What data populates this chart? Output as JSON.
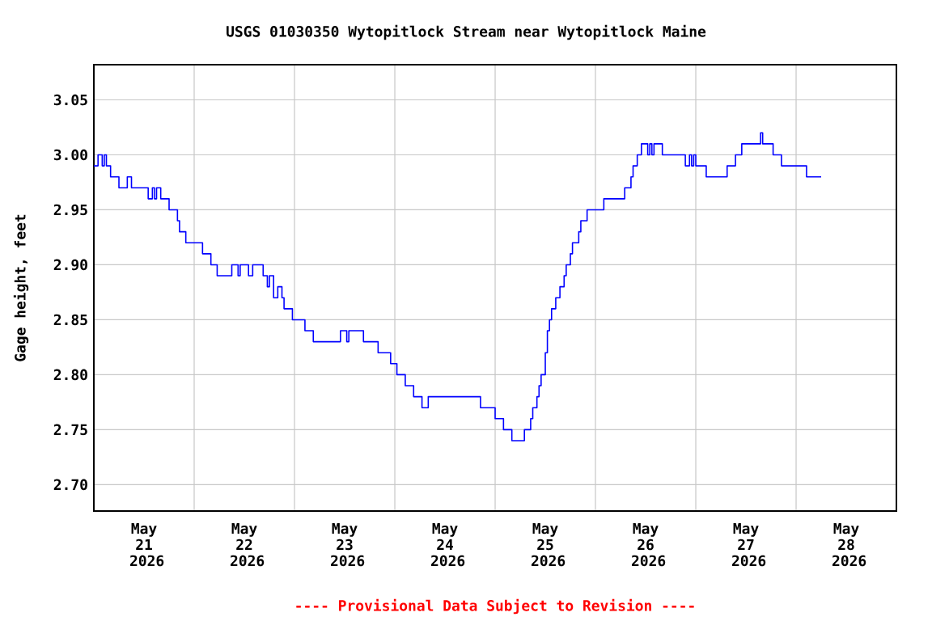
{
  "chart_data": {
    "type": "step",
    "title": "USGS 01030350 Wytopitlock Stream near Wytopitlock Maine",
    "ylabel": "Gage height, feet",
    "annotations": [
      "---- Provisional Data Subject to Revision ----"
    ],
    "x": [
      "2026-05-21T00:00",
      "2026-05-21T01:00",
      "2026-05-21T02:00",
      "2026-05-21T02:30",
      "2026-05-21T03:00",
      "2026-05-21T04:00",
      "2026-05-21T06:00",
      "2026-05-21T08:00",
      "2026-05-21T09:00",
      "2026-05-21T13:00",
      "2026-05-21T14:00",
      "2026-05-21T14:30",
      "2026-05-21T15:00",
      "2026-05-21T16:00",
      "2026-05-21T18:00",
      "2026-05-21T20:00",
      "2026-05-21T20:30",
      "2026-05-21T22:00",
      "2026-05-22T02:00",
      "2026-05-22T04:00",
      "2026-05-22T05:30",
      "2026-05-22T09:00",
      "2026-05-22T10:30",
      "2026-05-22T11:00",
      "2026-05-22T13:00",
      "2026-05-22T14:00",
      "2026-05-22T16:30",
      "2026-05-22T17:30",
      "2026-05-22T18:00",
      "2026-05-22T19:00",
      "2026-05-22T20:00",
      "2026-05-22T21:00",
      "2026-05-22T21:30",
      "2026-05-22T23:30",
      "2026-05-23T02:30",
      "2026-05-23T04:30",
      "2026-05-23T11:00",
      "2026-05-23T12:30",
      "2026-05-23T13:00",
      "2026-05-23T16:30",
      "2026-05-23T20:00",
      "2026-05-23T23:00",
      "2026-05-24T00:30",
      "2026-05-24T02:30",
      "2026-05-24T04:30",
      "2026-05-24T06:30",
      "2026-05-24T08:00",
      "2026-05-24T20:30",
      "2026-05-25T00:00",
      "2026-05-25T02:00",
      "2026-05-25T04:00",
      "2026-05-25T07:00",
      "2026-05-25T08:30",
      "2026-05-25T09:00",
      "2026-05-25T10:00",
      "2026-05-25T10:30",
      "2026-05-25T11:00",
      "2026-05-25T12:00",
      "2026-05-25T12:30",
      "2026-05-25T13:00",
      "2026-05-25T13:30",
      "2026-05-25T14:30",
      "2026-05-25T15:30",
      "2026-05-25T16:30",
      "2026-05-25T17:00",
      "2026-05-25T18:00",
      "2026-05-25T18:30",
      "2026-05-25T20:00",
      "2026-05-25T20:30",
      "2026-05-25T22:00",
      "2026-05-26T02:00",
      "2026-05-26T07:00",
      "2026-05-26T08:30",
      "2026-05-26T09:00",
      "2026-05-26T10:00",
      "2026-05-26T11:00",
      "2026-05-26T12:30",
      "2026-05-26T13:00",
      "2026-05-26T13:30",
      "2026-05-26T14:00",
      "2026-05-26T16:00",
      "2026-05-26T21:30",
      "2026-05-26T22:30",
      "2026-05-26T23:00",
      "2026-05-26T23:30",
      "2026-05-27T00:00",
      "2026-05-27T02:30",
      "2026-05-27T07:30",
      "2026-05-27T09:30",
      "2026-05-27T11:00",
      "2026-05-27T15:30",
      "2026-05-27T16:00",
      "2026-05-27T18:30",
      "2026-05-27T20:30",
      "2026-05-28T02:30",
      "2026-05-28T06:00"
    ],
    "series": [
      {
        "color": "#0000ff",
        "values": [
          2.99,
          3.0,
          2.99,
          3.0,
          2.99,
          2.98,
          2.97,
          2.98,
          2.97,
          2.96,
          2.97,
          2.96,
          2.97,
          2.96,
          2.95,
          2.94,
          2.93,
          2.92,
          2.91,
          2.9,
          2.89,
          2.9,
          2.89,
          2.9,
          2.89,
          2.9,
          2.89,
          2.88,
          2.89,
          2.87,
          2.88,
          2.87,
          2.86,
          2.85,
          2.84,
          2.83,
          2.84,
          2.83,
          2.84,
          2.83,
          2.82,
          2.81,
          2.8,
          2.79,
          2.78,
          2.77,
          2.78,
          2.77,
          2.76,
          2.75,
          2.74,
          2.75,
          2.76,
          2.77,
          2.78,
          2.79,
          2.8,
          2.82,
          2.84,
          2.85,
          2.86,
          2.87,
          2.88,
          2.89,
          2.9,
          2.91,
          2.92,
          2.93,
          2.94,
          2.95,
          2.96,
          2.97,
          2.98,
          2.99,
          3.0,
          3.01,
          3.0,
          3.01,
          3.0,
          3.01,
          3.0,
          2.99,
          3.0,
          2.99,
          3.0,
          2.99,
          2.98,
          2.99,
          3.0,
          3.01,
          3.02,
          3.01,
          3.0,
          2.99,
          2.98,
          2.98
        ]
      }
    ],
    "xlim": [
      "2026-05-21T00:00",
      "2026-05-29T00:00"
    ],
    "xticks": [
      {
        "value": "2026-05-22",
        "label": null
      },
      {
        "value": "2026-05-23",
        "label": null
      },
      {
        "value": "2026-05-24",
        "label": null
      },
      {
        "value": "2026-05-25",
        "label": null
      },
      {
        "value": "2026-05-26",
        "label": null
      },
      {
        "value": "2026-05-27",
        "label": null
      },
      {
        "value": "2026-05-28",
        "label": null
      },
      {
        "value": "2026-05-21T12:00",
        "label": "May 21 2026"
      },
      {
        "value": "2026-05-22T12:00",
        "label": "May 22 2026"
      },
      {
        "value": "2026-05-23T12:00",
        "label": "May 23 2026"
      },
      {
        "value": "2026-05-24T12:00",
        "label": "May 24 2026"
      },
      {
        "value": "2026-05-25T12:00",
        "label": "May 25 2026"
      },
      {
        "value": "2026-05-26T12:00",
        "label": "May 26 2026"
      },
      {
        "value": "2026-05-27T12:00",
        "label": "May 27 2026"
      },
      {
        "value": "2026-05-28T12:00",
        "label": "May 28 2026"
      }
    ],
    "ylim": [
      2.676,
      3.082
    ],
    "yticks": [
      {
        "value": 2.7,
        "label": "2.70"
      },
      {
        "value": 2.75,
        "label": "2.75"
      },
      {
        "value": 2.8,
        "label": "2.80"
      },
      {
        "value": 2.85,
        "label": "2.85"
      },
      {
        "value": 2.9,
        "label": "2.90"
      },
      {
        "value": 2.95,
        "label": "2.95"
      },
      {
        "value": 3.0,
        "label": "3.00"
      },
      {
        "value": 3.05,
        "label": "3.05"
      }
    ],
    "grid": true
  }
}
